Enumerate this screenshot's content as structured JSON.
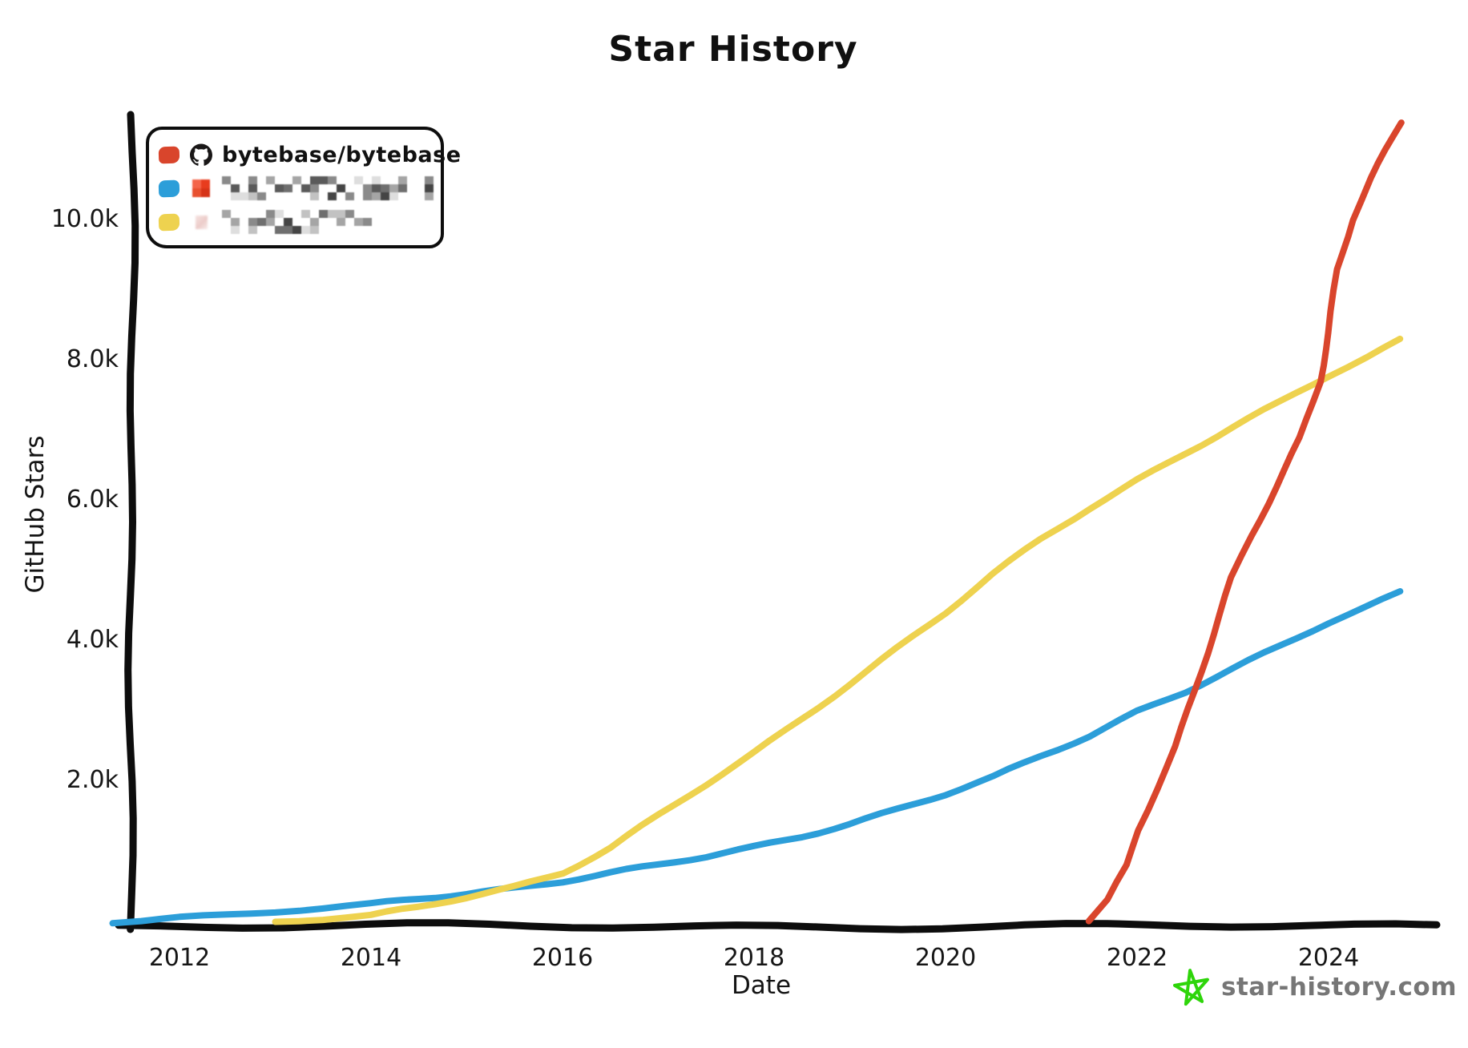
{
  "title": "Star History",
  "watermark": {
    "text": "star-history.com",
    "star_color": "#2ed50a",
    "text_color": "#767676"
  },
  "legend": {
    "entries": [
      {
        "label": "bytebase/bytebase",
        "color": "#d9452c",
        "icon": "github",
        "redacted": false
      },
      {
        "label": "",
        "color": "#2c9ed9",
        "icon": "redacted-avatar-red",
        "redacted": true,
        "redacted_width": 264
      },
      {
        "label": "",
        "color": "#eed24f",
        "icon": "redacted-avatar-pink",
        "redacted": true,
        "redacted_width": 188
      }
    ],
    "mosaic_shades": [
      "#454545",
      "#5a5a5a",
      "#6f6f6f",
      "#8a8a8a",
      "#a5a5a5",
      "#c2c2c2",
      "#dedede"
    ]
  },
  "axes": {
    "x_label": "Date",
    "y_label": "GitHub Stars",
    "x_tick_labels": [
      "2012",
      "2014",
      "2016",
      "2018",
      "2020",
      "2022",
      "2024"
    ],
    "y_tick_labels": [
      "2.0k",
      "4.0k",
      "6.0k",
      "8.0k",
      "10.0k"
    ]
  },
  "chart_data": {
    "type": "line",
    "title": "Star History",
    "xlabel": "Date",
    "ylabel": "GitHub Stars",
    "x_ticks": [
      2012,
      2014,
      2016,
      2018,
      2020,
      2022,
      2024
    ],
    "y_ticks": [
      2000,
      4000,
      6000,
      8000,
      10000
    ],
    "y_tick_labels": [
      "2.0k",
      "4.0k",
      "6.0k",
      "8.0k",
      "10.0k"
    ],
    "xlim": [
      2011.3,
      2025.1
    ],
    "ylim": [
      0,
      11500
    ],
    "grid": false,
    "legend_position": "top-left",
    "x_unit": "year",
    "y_unit": "github-stars",
    "series": [
      {
        "name": "bytebase/bytebase",
        "redacted": false,
        "color": "#d9452c",
        "points": [
          [
            2021.5,
            0
          ],
          [
            2021.7,
            300
          ],
          [
            2021.9,
            800
          ],
          [
            2022.0,
            1300
          ],
          [
            2022.2,
            1900
          ],
          [
            2022.4,
            2500
          ],
          [
            2022.6,
            3300
          ],
          [
            2022.8,
            4100
          ],
          [
            2023.0,
            4900
          ],
          [
            2023.2,
            5500
          ],
          [
            2023.45,
            6200
          ],
          [
            2023.7,
            6900
          ],
          [
            2023.9,
            7700
          ],
          [
            2024.0,
            8400
          ],
          [
            2024.1,
            9300
          ],
          [
            2024.25,
            10000
          ],
          [
            2024.45,
            10600
          ],
          [
            2024.6,
            11000
          ],
          [
            2024.75,
            11400
          ]
        ]
      },
      {
        "name": "",
        "redacted": true,
        "color": "#2c9ed9",
        "points": [
          [
            2011.3,
            0
          ],
          [
            2011.6,
            25
          ],
          [
            2012,
            60
          ],
          [
            2012.5,
            95
          ],
          [
            2013,
            140
          ],
          [
            2013.5,
            185
          ],
          [
            2014,
            235
          ],
          [
            2014.5,
            320
          ],
          [
            2015,
            400
          ],
          [
            2015.5,
            480
          ],
          [
            2016,
            580
          ],
          [
            2016.5,
            690
          ],
          [
            2017,
            800
          ],
          [
            2017.5,
            920
          ],
          [
            2018,
            1060
          ],
          [
            2018.5,
            1220
          ],
          [
            2019,
            1400
          ],
          [
            2019.5,
            1600
          ],
          [
            2020,
            1810
          ],
          [
            2020.5,
            2050
          ],
          [
            2021,
            2360
          ],
          [
            2021.5,
            2650
          ],
          [
            2022,
            3000
          ],
          [
            2022.5,
            3280
          ],
          [
            2023,
            3600
          ],
          [
            2023.5,
            3920
          ],
          [
            2024,
            4260
          ],
          [
            2024.4,
            4490
          ],
          [
            2024.75,
            4700
          ]
        ]
      },
      {
        "name": "",
        "redacted": true,
        "color": "#eed24f",
        "points": [
          [
            2013,
            0
          ],
          [
            2013.5,
            30
          ],
          [
            2014,
            75
          ],
          [
            2014.5,
            200
          ],
          [
            2015,
            350
          ],
          [
            2015.5,
            500
          ],
          [
            2016,
            700
          ],
          [
            2016.5,
            1050
          ],
          [
            2017,
            1500
          ],
          [
            2017.5,
            1950
          ],
          [
            2018,
            2400
          ],
          [
            2018.5,
            2900
          ],
          [
            2019,
            3400
          ],
          [
            2019.5,
            3900
          ],
          [
            2020,
            4400
          ],
          [
            2020.5,
            4950
          ],
          [
            2021,
            5450
          ],
          [
            2021.5,
            5900
          ],
          [
            2022,
            6300
          ],
          [
            2022.5,
            6680
          ],
          [
            2023,
            7050
          ],
          [
            2023.5,
            7400
          ],
          [
            2024,
            7780
          ],
          [
            2024.4,
            8050
          ],
          [
            2024.75,
            8300
          ]
        ]
      }
    ]
  }
}
